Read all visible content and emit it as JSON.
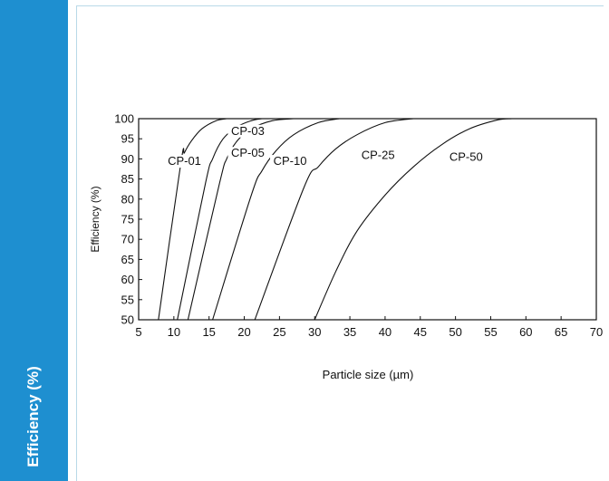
{
  "sidebar": {
    "title": "Efficiency (%)"
  },
  "colors": {
    "sidebar": "#1e8fd0",
    "frame": "#b9d9e8",
    "line": "#111111"
  },
  "chart_data": {
    "type": "line",
    "title": "",
    "xlabel": "Particle size (µm)",
    "ylabel": "Efficiency (%)",
    "xlim": [
      5,
      70
    ],
    "ylim": [
      50,
      100
    ],
    "xticks": [
      5,
      10,
      15,
      20,
      25,
      30,
      35,
      40,
      45,
      50,
      55,
      60,
      65,
      70
    ],
    "yticks": [
      50,
      55,
      60,
      65,
      70,
      75,
      80,
      85,
      90,
      95,
      100
    ],
    "grid": false,
    "legend": "none",
    "series": [
      {
        "name": "CP-01",
        "x": [
          7.8,
          11,
          11.5,
          12.5,
          14,
          16,
          17.5
        ],
        "y": [
          50,
          89,
          91.5,
          94.5,
          97.5,
          99.5,
          100
        ]
      },
      {
        "name": "CP-03",
        "x": [
          10.5,
          14.5,
          15.5,
          17,
          19,
          21,
          22.5
        ],
        "y": [
          50,
          84,
          90,
          95,
          98,
          99.5,
          100
        ]
      },
      {
        "name": "CP-05",
        "x": [
          12,
          16.5,
          17.5,
          19,
          21,
          24,
          27
        ],
        "y": [
          50,
          84,
          90,
          94.5,
          97.5,
          99.5,
          100
        ]
      },
      {
        "name": "CP-10",
        "x": [
          15.5,
          21,
          22.5,
          24.5,
          27,
          30.5,
          33.5
        ],
        "y": [
          50,
          81,
          87,
          92,
          96,
          99,
          100
        ]
      },
      {
        "name": "CP-25",
        "x": [
          21.5,
          28.5,
          30.5,
          33,
          36,
          40,
          44
        ],
        "y": [
          50,
          83,
          88,
          92.5,
          96,
          99,
          100
        ]
      },
      {
        "name": "CP-50",
        "x": [
          30,
          33,
          36,
          40,
          44,
          48,
          52,
          56,
          58
        ],
        "y": [
          50,
          62,
          72,
          81,
          88,
          93.5,
          97.5,
          99.7,
          100
        ]
      }
    ],
    "annotations": [
      {
        "text": "CP-01",
        "x": 11.5,
        "y": 88.5
      },
      {
        "text": "CP-03",
        "x": 20.5,
        "y": 96
      },
      {
        "text": "CP-05",
        "x": 20.5,
        "y": 90.5
      },
      {
        "text": "CP-10",
        "x": 26.5,
        "y": 88.5
      },
      {
        "text": "CP-25",
        "x": 39,
        "y": 90
      },
      {
        "text": "CP-50",
        "x": 51.5,
        "y": 89.5
      }
    ]
  }
}
